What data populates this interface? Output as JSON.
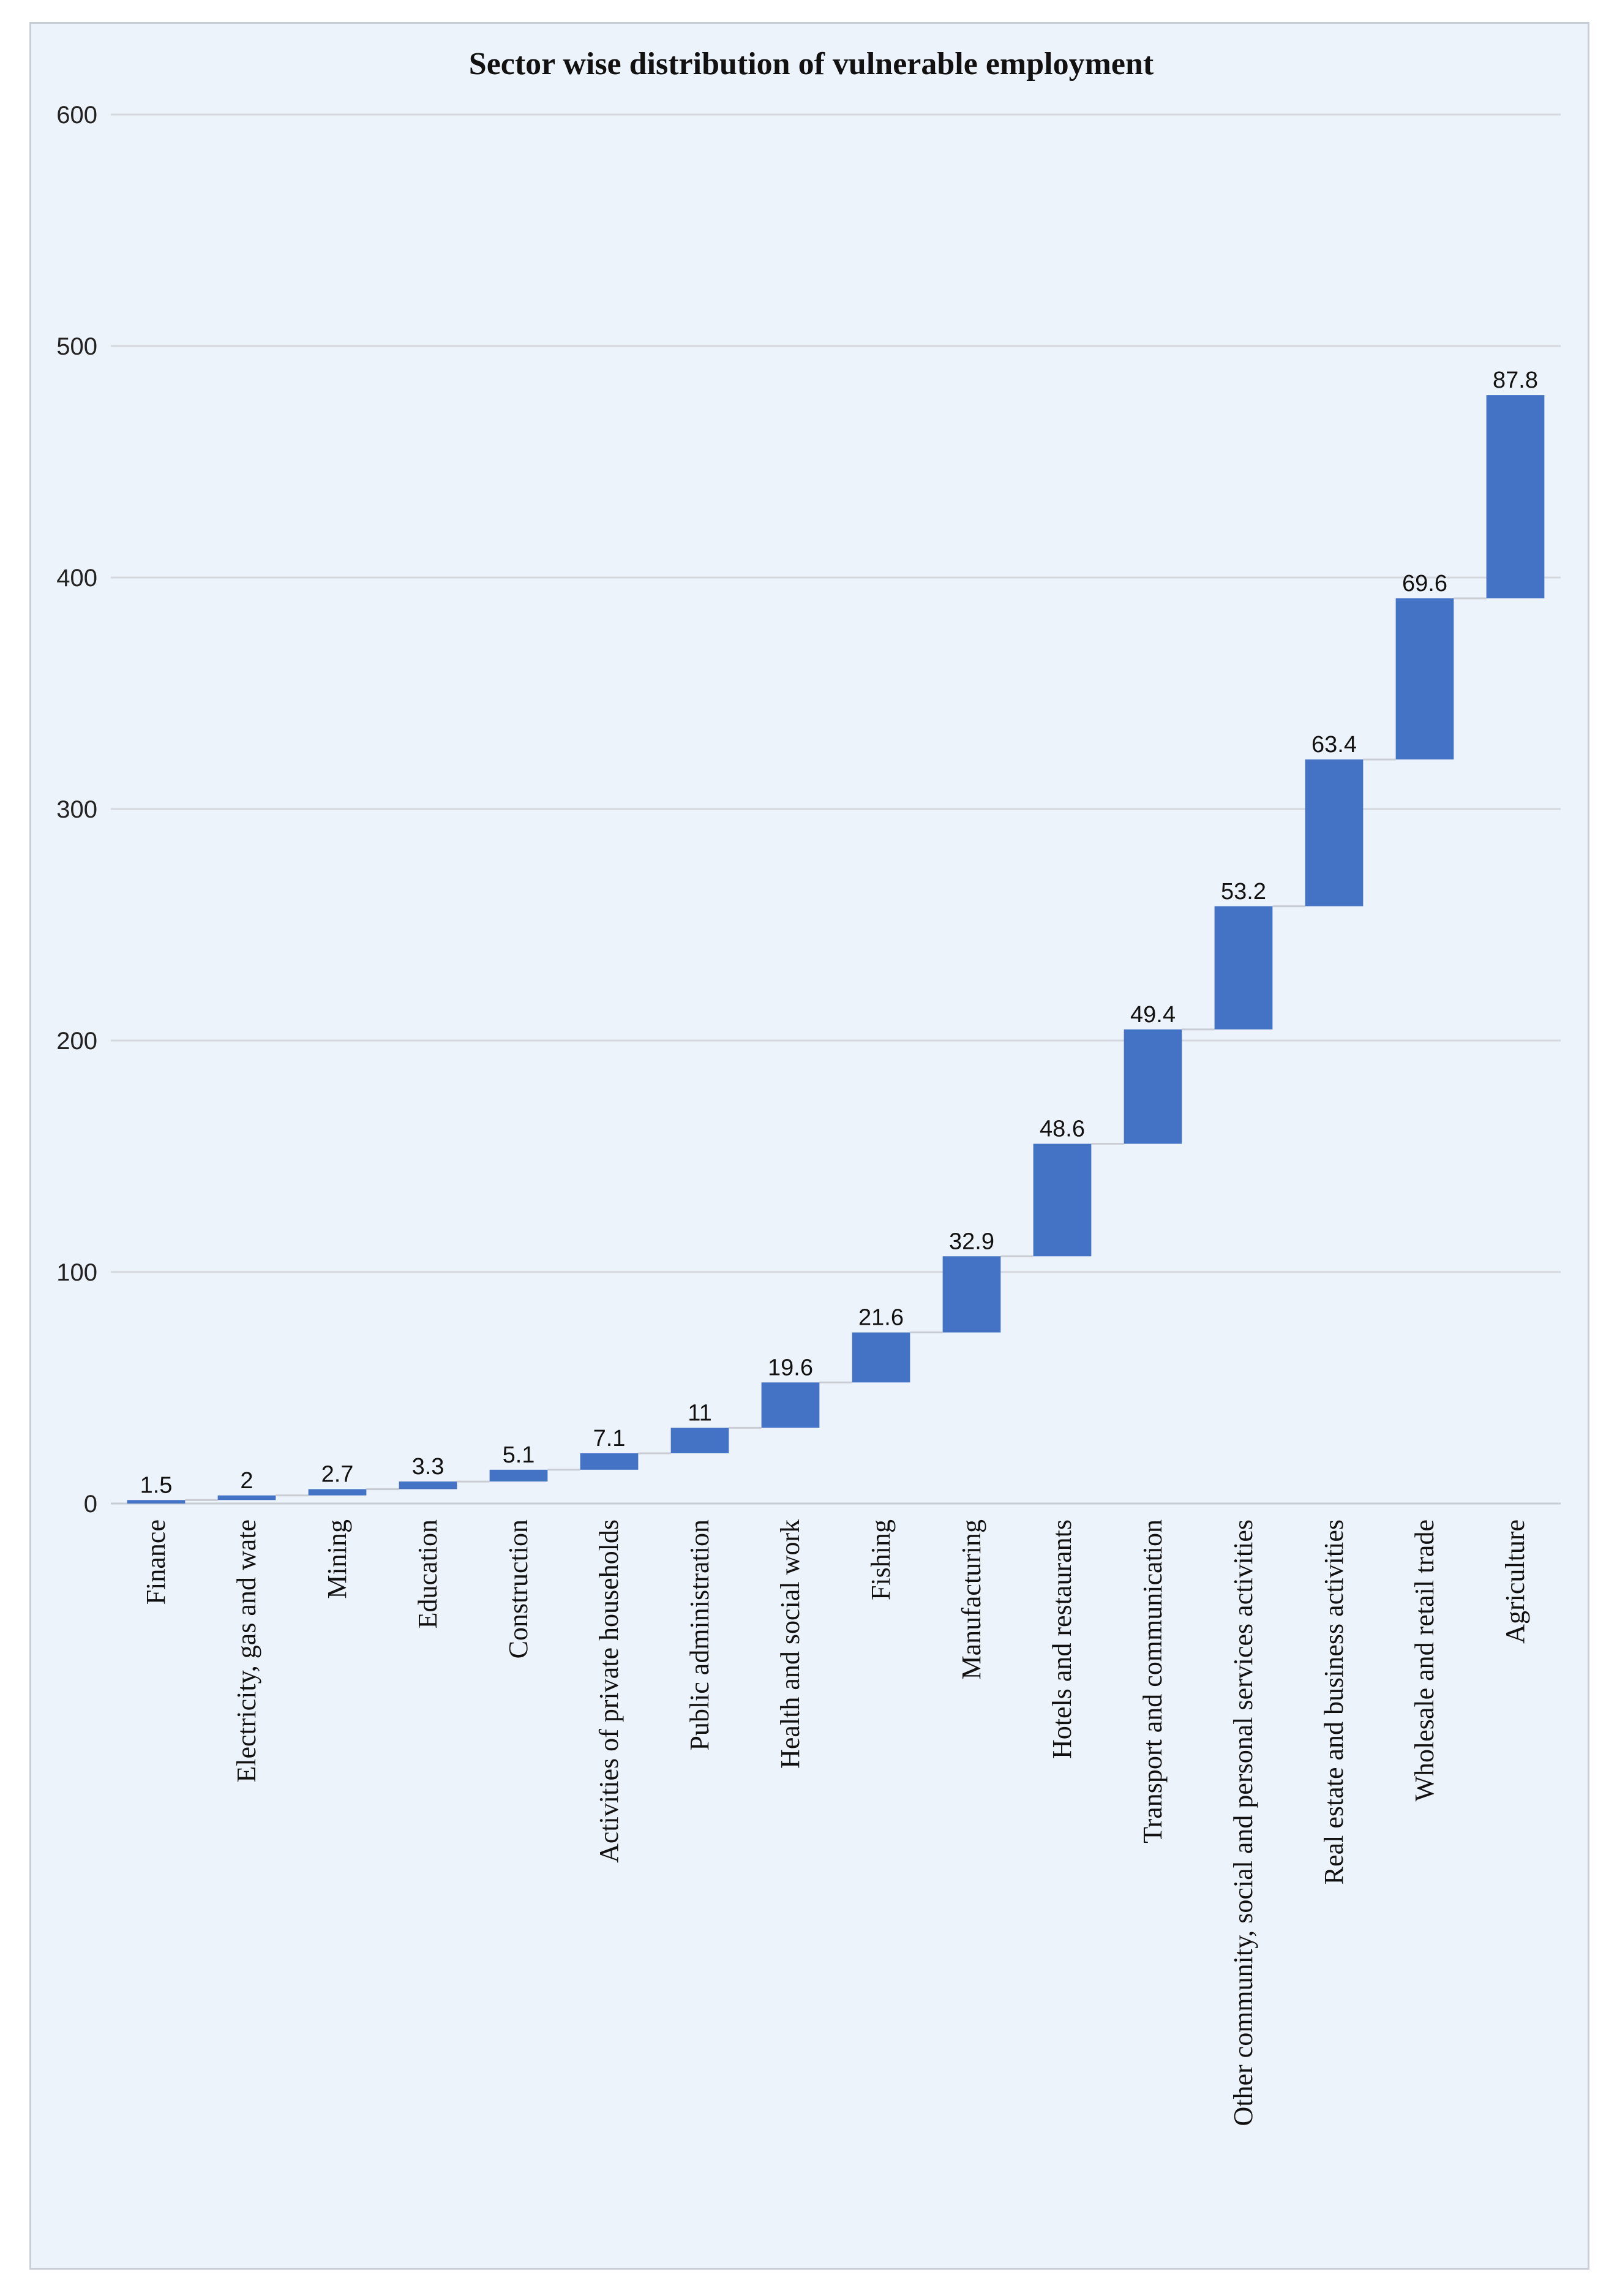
{
  "chart_data": {
    "type": "waterfall",
    "title": "Sector wise distribution of vulnerable employment",
    "xlabel": "",
    "ylabel": "",
    "ylim": [
      0,
      600
    ],
    "yticks": [
      0,
      100,
      200,
      300,
      400,
      500,
      600
    ],
    "grid": true,
    "categories": [
      "Finance",
      "Electricity, gas and wate",
      "Mining",
      "Education",
      "Construction",
      "Activities of private households",
      "Public administration",
      "Health and social work",
      "Fishing",
      "Manufacturing",
      "Hotels and restaurants",
      "Transport and communication",
      "Other community, social and personal services activities",
      "Real estate and business activities",
      "Wholesale and retail trade",
      "Agriculture"
    ],
    "values": [
      1.5,
      2,
      2.7,
      3.3,
      5.1,
      7.1,
      11,
      19.6,
      21.6,
      32.9,
      48.6,
      49.4,
      53.2,
      63.4,
      69.6,
      87.8
    ],
    "value_labels": [
      "1.5",
      "2",
      "2.7",
      "3.3",
      "5.1",
      "7.1",
      "11",
      "19.6",
      "21.6",
      "32.9",
      "48.6",
      "49.4",
      "53.2",
      "63.4",
      "69.6",
      "87.8"
    ],
    "colors": {
      "bar": "#4472c4",
      "background": "#edf3fb"
    }
  }
}
